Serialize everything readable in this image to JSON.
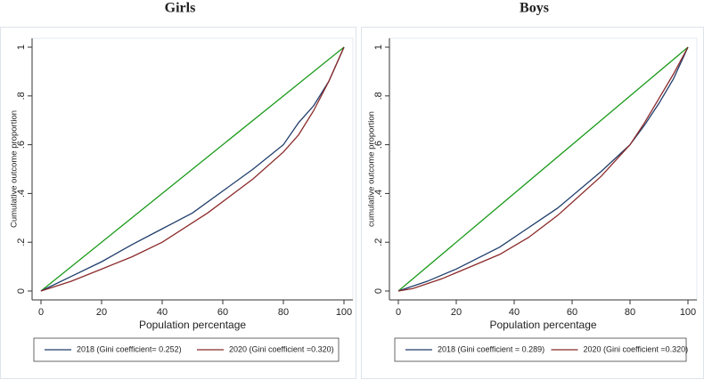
{
  "chart_data": [
    {
      "type": "line",
      "title": "Girls",
      "xlabel": "Population percentage",
      "ylabel": "Cumulative outcome proportion",
      "xlim": [
        0,
        100
      ],
      "xticks": [
        0,
        20,
        40,
        60,
        80,
        100
      ],
      "ylim": [
        0,
        1
      ],
      "yticks": [
        0,
        {
          "value": 0.2,
          "label": ".2"
        },
        {
          "value": 0.4,
          "label": ".4"
        },
        {
          "value": 0.6,
          "label": ".6"
        },
        {
          "value": 0.8,
          "label": ".8"
        },
        1
      ],
      "series": [
        {
          "color": "#1a9a1a",
          "x": [
            0,
            100
          ],
          "values": [
            0,
            1
          ]
        },
        {
          "name": "2018 (Gini coefficient= 0.252)",
          "color": "#1f3d6b",
          "x": [
            0,
            10,
            20,
            30,
            40,
            50,
            60,
            70,
            80,
            85,
            90,
            95,
            100
          ],
          "values": [
            0,
            0.06,
            0.12,
            0.19,
            0.255,
            0.32,
            0.41,
            0.5,
            0.6,
            0.69,
            0.76,
            0.86,
            1
          ]
        },
        {
          "name": "2020 (Gini coefficient =0.320)",
          "color": "#8b2a2a",
          "x": [
            0,
            10,
            20,
            30,
            40,
            55,
            70,
            80,
            85,
            90,
            95,
            100
          ],
          "values": [
            0,
            0.04,
            0.09,
            0.14,
            0.2,
            0.32,
            0.46,
            0.57,
            0.64,
            0.74,
            0.86,
            1
          ]
        }
      ]
    },
    {
      "type": "line",
      "title": "Boys",
      "xlabel": "Population percentage",
      "ylabel": "cumulative outcome proportion",
      "xlim": [
        0,
        100
      ],
      "xticks": [
        0,
        20,
        40,
        60,
        80,
        100
      ],
      "ylim": [
        0,
        1
      ],
      "yticks": [
        0,
        {
          "value": 0.2,
          "label": ".2"
        },
        {
          "value": 0.4,
          "label": ".4"
        },
        {
          "value": 0.6,
          "label": ".6"
        },
        {
          "value": 0.8,
          "label": ".8"
        },
        1
      ],
      "series": [
        {
          "color": "#1a9a1a",
          "x": [
            0,
            100
          ],
          "values": [
            0,
            1
          ]
        },
        {
          "name": "2018 (Gini coefficient = 0.289)",
          "color": "#1f3d6b",
          "x": [
            0,
            10,
            20,
            35,
            45,
            55,
            70,
            80,
            85,
            90,
            95,
            100
          ],
          "values": [
            0,
            0.04,
            0.09,
            0.18,
            0.26,
            0.34,
            0.49,
            0.6,
            0.68,
            0.77,
            0.87,
            1
          ]
        },
        {
          "name": "2020 (Gini coefficient =0.320)",
          "color": "#8b2a2a",
          "x": [
            0,
            5,
            15,
            25,
            35,
            45,
            55,
            70,
            80,
            85,
            90,
            95,
            100
          ],
          "values": [
            0,
            0.01,
            0.05,
            0.1,
            0.15,
            0.22,
            0.31,
            0.47,
            0.6,
            0.69,
            0.79,
            0.89,
            1
          ]
        }
      ]
    }
  ]
}
